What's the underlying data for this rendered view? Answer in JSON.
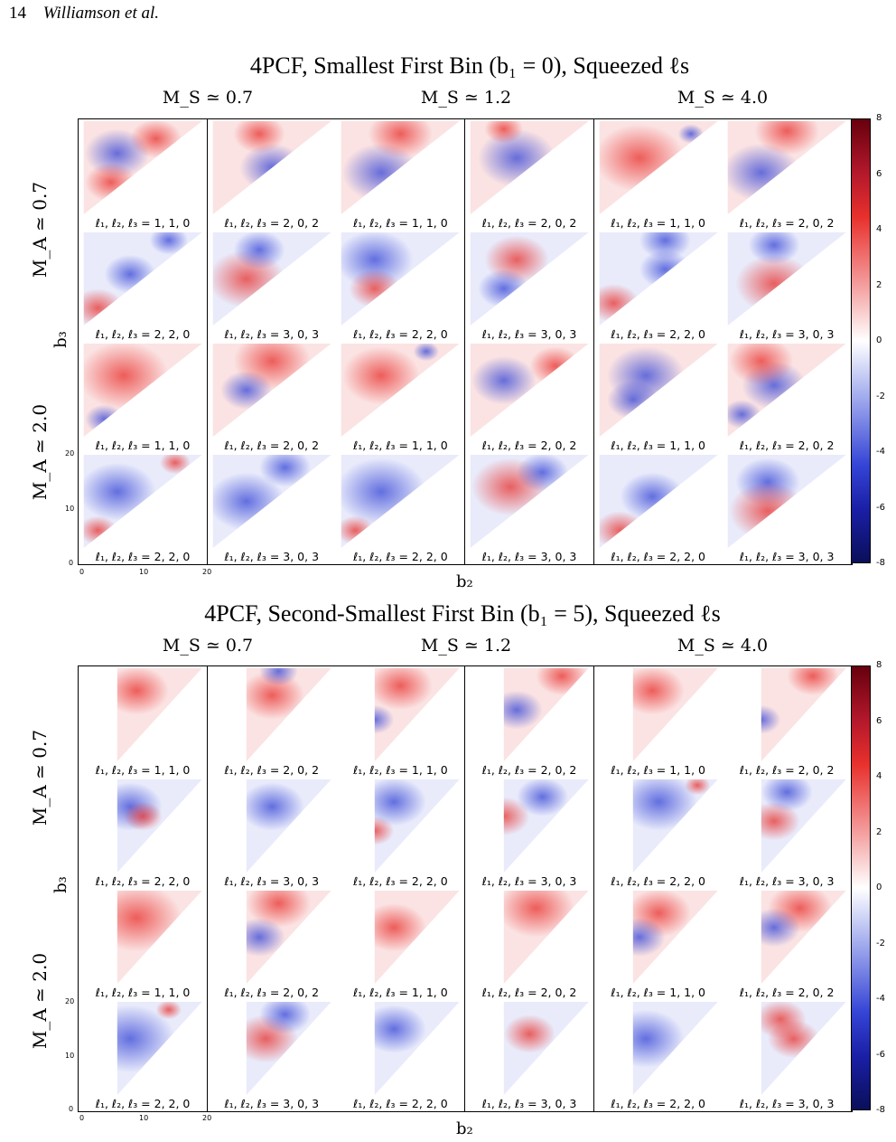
{
  "running_head": {
    "page_number": "14",
    "authors": "Williamson et al."
  },
  "figures": [
    {
      "title": "4PCF, Smallest First Bin (b₁ = 0), Squeezed ℓs",
      "column_headers": [
        "M_S ≃ 0.7",
        "M_S ≃ 1.2",
        "M_S ≃ 4.0"
      ],
      "row_headers": [
        "M_A ≃ 0.7",
        "M_A ≃ 2.0"
      ],
      "xlabel": "b₂",
      "ylabel": "b₃",
      "x_ticks": [
        "0",
        "10",
        "20"
      ],
      "y_ticks": [
        "20",
        "10",
        "0"
      ],
      "colorbar_ticks": [
        "8",
        "6",
        "4",
        "2",
        "0",
        "-2",
        "-4",
        "-6",
        "-8"
      ],
      "panel_labels": [
        [
          "ℓ₁, ℓ₂, ℓ₃ = 1, 1, 0",
          "ℓ₁, ℓ₂, ℓ₃ = 2, 0, 2",
          "ℓ₁, ℓ₂, ℓ₃ = 1, 1, 0",
          "ℓ₁, ℓ₂, ℓ₃ = 2, 0, 2",
          "ℓ₁, ℓ₂, ℓ₃ = 1, 1, 0",
          "ℓ₁, ℓ₂, ℓ₃ = 2, 0, 2"
        ],
        [
          "ℓ₁, ℓ₂, ℓ₃ = 2, 2, 0",
          "ℓ₁, ℓ₂, ℓ₃ = 3, 0, 3",
          "ℓ₁, ℓ₂, ℓ₃ = 2, 2, 0",
          "ℓ₁, ℓ₂, ℓ₃ = 3, 0, 3",
          "ℓ₁, ℓ₂, ℓ₃ = 2, 2, 0",
          "ℓ₁, ℓ₂, ℓ₃ = 3, 0, 3"
        ],
        [
          "ℓ₁, ℓ₂, ℓ₃ = 1, 1, 0",
          "ℓ₁, ℓ₂, ℓ₃ = 2, 0, 2",
          "ℓ₁, ℓ₂, ℓ₃ = 1, 1, 0",
          "ℓ₁, ℓ₂, ℓ₃ = 2, 0, 2",
          "ℓ₁, ℓ₂, ℓ₃ = 1, 1, 0",
          "ℓ₁, ℓ₂, ℓ₃ = 2, 0, 2"
        ],
        [
          "ℓ₁, ℓ₂, ℓ₃ = 2, 2, 0",
          "ℓ₁, ℓ₂, ℓ₃ = 3, 0, 3",
          "ℓ₁, ℓ₂, ℓ₃ = 2, 2, 0",
          "ℓ₁, ℓ₂, ℓ₃ = 3, 0, 3",
          "ℓ₁, ℓ₂, ℓ₃ = 2, 2, 0",
          "ℓ₁, ℓ₂, ℓ₃ = 3, 0, 3"
        ]
      ]
    },
    {
      "title": "4PCF, Second-Smallest First Bin (b₁ = 5), Squeezed ℓs",
      "column_headers": [
        "M_S ≃ 0.7",
        "M_S ≃ 1.2",
        "M_S ≃ 4.0"
      ],
      "row_headers": [
        "M_A ≃ 0.7",
        "M_A ≃ 2.0"
      ],
      "xlabel": "b₂",
      "ylabel": "b₃",
      "x_ticks": [
        "0",
        "10",
        "20"
      ],
      "y_ticks": [
        "20",
        "10",
        "0"
      ],
      "colorbar_ticks": [
        "8",
        "6",
        "4",
        "2",
        "0",
        "-2",
        "-4",
        "-6",
        "-8"
      ],
      "panel_labels": [
        [
          "ℓ₁, ℓ₂, ℓ₃ = 1, 1, 0",
          "ℓ₁, ℓ₂, ℓ₃ = 2, 0, 2",
          "ℓ₁, ℓ₂, ℓ₃ = 1, 1, 0",
          "ℓ₁, ℓ₂, ℓ₃ = 2, 0, 2",
          "ℓ₁, ℓ₂, ℓ₃ = 1, 1, 0",
          "ℓ₁, ℓ₂, ℓ₃ = 2, 0, 2"
        ],
        [
          "ℓ₁, ℓ₂, ℓ₃ = 2, 2, 0",
          "ℓ₁, ℓ₂, ℓ₃ = 3, 0, 3",
          "ℓ₁, ℓ₂, ℓ₃ = 2, 2, 0",
          "ℓ₁, ℓ₂, ℓ₃ = 3, 0, 3",
          "ℓ₁, ℓ₂, ℓ₃ = 2, 2, 0",
          "ℓ₁, ℓ₂, ℓ₃ = 3, 0, 3"
        ],
        [
          "ℓ₁, ℓ₂, ℓ₃ = 1, 1, 0",
          "ℓ₁, ℓ₂, ℓ₃ = 2, 0, 2",
          "ℓ₁, ℓ₂, ℓ₃ = 1, 1, 0",
          "ℓ₁, ℓ₂, ℓ₃ = 2, 0, 2",
          "ℓ₁, ℓ₂, ℓ₃ = 1, 1, 0",
          "ℓ₁, ℓ₂, ℓ₃ = 2, 0, 2"
        ],
        [
          "ℓ₁, ℓ₂, ℓ₃ = 2, 2, 0",
          "ℓ₁, ℓ₂, ℓ₃ = 3, 0, 3",
          "ℓ₁, ℓ₂, ℓ₃ = 2, 2, 0",
          "ℓ₁, ℓ₂, ℓ₃ = 3, 0, 3",
          "ℓ₁, ℓ₂, ℓ₃ = 2, 2, 0",
          "ℓ₁, ℓ₂, ℓ₃ = 3, 0, 3"
        ]
      ]
    }
  ],
  "colors": {
    "red": "#e8302c",
    "blue": "#3545d6",
    "dark_red": "#67000d",
    "dark_blue": "#0a0f5a"
  }
}
